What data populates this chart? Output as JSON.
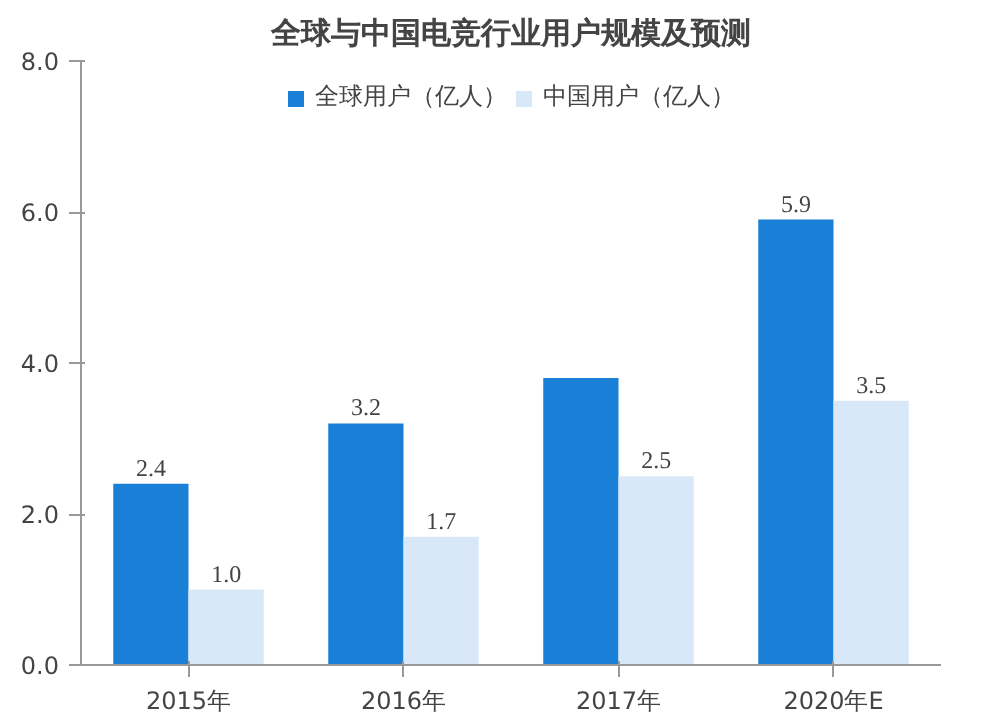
{
  "chart_data": {
    "type": "bar",
    "title": "全球与中国电竞行业用户规模及预测",
    "categories": [
      "2015年",
      "2016年",
      "2017年",
      "2020年E"
    ],
    "series": [
      {
        "name": "全球用户（亿人）",
        "color": "#1a7fd6",
        "values": [
          2.4,
          3.2,
          3.8,
          5.9
        ],
        "value_labels": [
          "2.4",
          "3.2",
          null,
          "5.9"
        ]
      },
      {
        "name": "中国用户（亿人）",
        "color": "#d9e8f8",
        "values": [
          1.0,
          1.7,
          2.5,
          3.5
        ],
        "value_labels": [
          "1.0",
          "1.7",
          "2.5",
          "3.5"
        ]
      }
    ],
    "ylim": [
      0,
      8
    ],
    "yticks": [
      {
        "value": 0,
        "label": "0.0"
      },
      {
        "value": 2,
        "label": "2.0"
      },
      {
        "value": 4,
        "label": "4.0"
      },
      {
        "value": 6,
        "label": "6.0"
      },
      {
        "value": 8,
        "label": "8.0"
      }
    ],
    "grid": false,
    "legend": "top"
  }
}
